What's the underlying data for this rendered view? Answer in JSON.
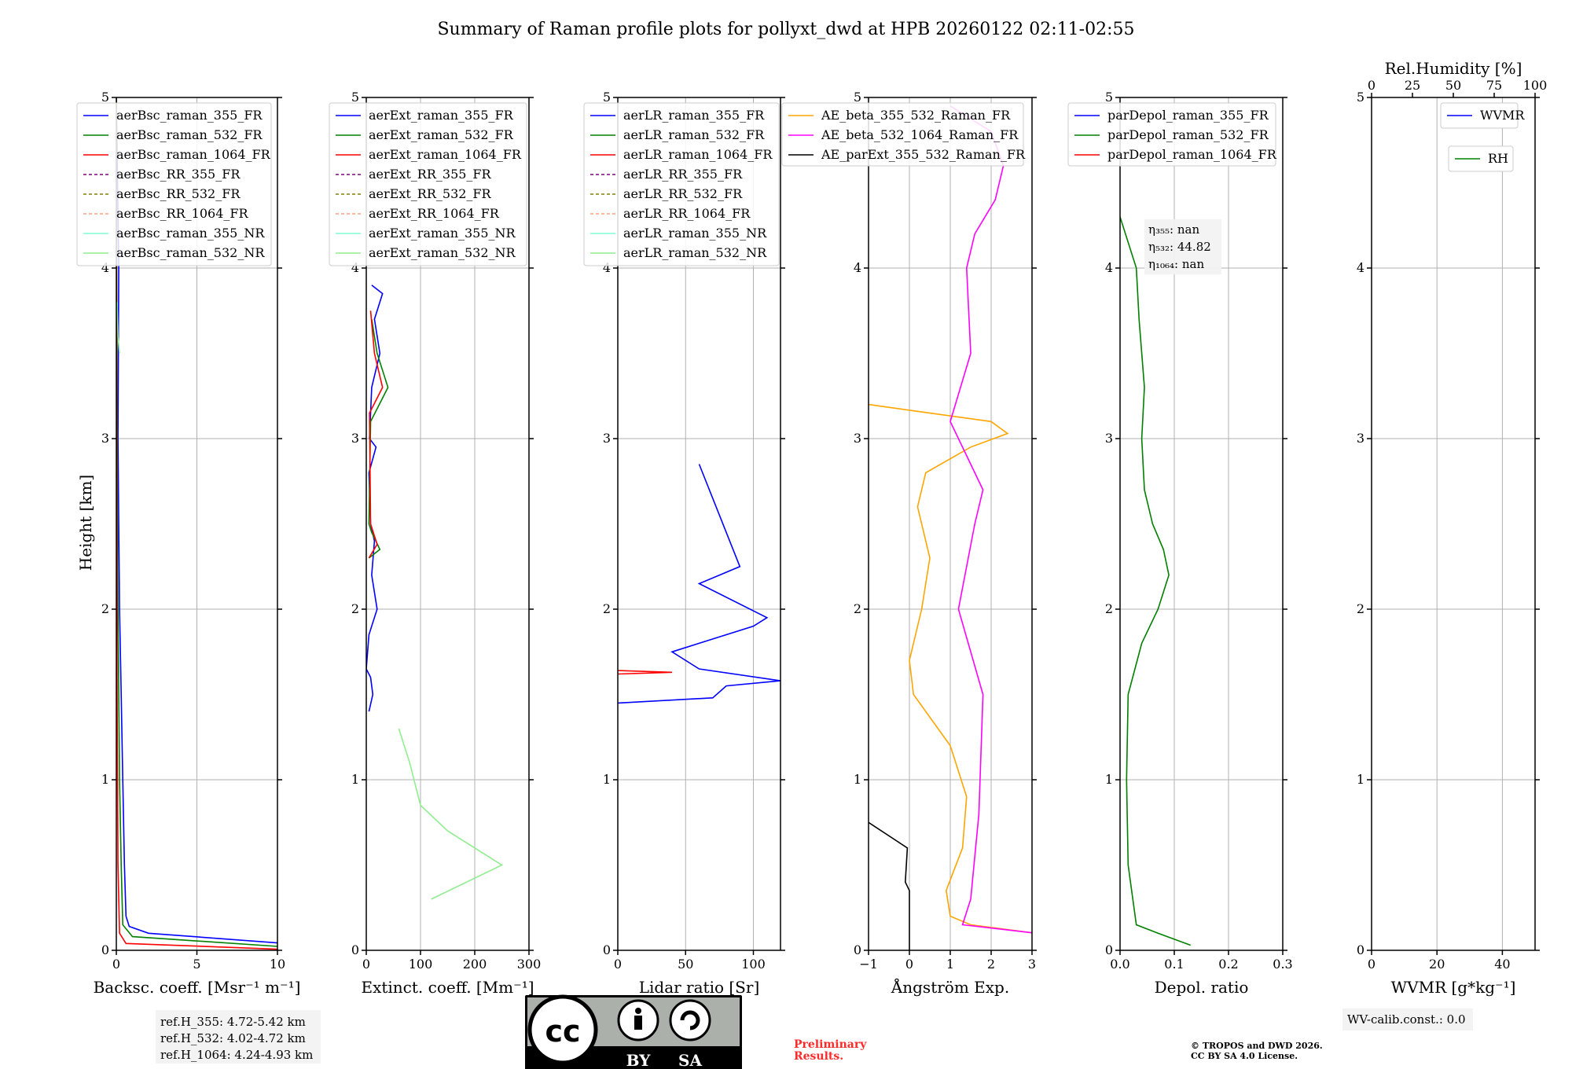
{
  "title": "Summary of Raman profile plots for pollyxt_dwd at HPB 20260122 02:11-02:55",
  "ylabel": "Height [km]",
  "y_ticks": [
    "0",
    "1",
    "2",
    "3",
    "4",
    "5"
  ],
  "chart_data": [
    {
      "type": "line",
      "name": "backscatter",
      "xlabel": "Backsc. coeff. [Msr⁻¹ m⁻¹]",
      "xlim": [
        0,
        10
      ],
      "ylim": [
        0,
        5
      ],
      "x_ticks": [
        "0",
        "5",
        "10"
      ],
      "legend": [
        "aerBsc_raman_355_FR",
        "aerBsc_raman_532_FR",
        "aerBsc_raman_1064_FR",
        "aerBsc_RR_355_FR",
        "aerBsc_RR_532_FR",
        "aerBsc_RR_1064_FR",
        "aerBsc_raman_355_NR",
        "aerBsc_raman_532_NR"
      ],
      "series": [
        {
          "name": "aerBsc_raman_355_FR",
          "color": "#0000ff",
          "points": [
            [
              10.5,
              0.04
            ],
            [
              2,
              0.1
            ],
            [
              0.8,
              0.14
            ],
            [
              0.6,
              0.2
            ],
            [
              0.5,
              0.5
            ],
            [
              0.4,
              1.0
            ],
            [
              0.3,
              1.5
            ],
            [
              0.2,
              2.0
            ],
            [
              0.1,
              3.0
            ],
            [
              0.15,
              4.0
            ],
            [
              0,
              5
            ]
          ]
        },
        {
          "name": "aerBsc_raman_532_FR",
          "color": "#008000",
          "points": [
            [
              10.5,
              0.02
            ],
            [
              1,
              0.08
            ],
            [
              0.4,
              0.15
            ],
            [
              0.3,
              0.5
            ],
            [
              0.2,
              1.0
            ],
            [
              0.1,
              2.0
            ],
            [
              0.05,
              3.0
            ],
            [
              0,
              5
            ]
          ]
        },
        {
          "name": "aerBsc_raman_1064_FR",
          "color": "#ff0000",
          "points": [
            [
              10.5,
              0.005
            ],
            [
              0.6,
              0.04
            ],
            [
              0.2,
              0.1
            ],
            [
              0.1,
              0.5
            ],
            [
              0.05,
              1.5
            ],
            [
              0.02,
              3
            ],
            [
              0,
              5
            ]
          ]
        },
        {
          "name": "aerBsc_raman_532_NR",
          "color": "#90ee90",
          "points": [
            [
              0.2,
              3.5
            ],
            [
              0.1,
              3.6
            ],
            [
              0.05,
              3.8
            ]
          ]
        }
      ],
      "annotation": [
        "ref.H_355: 4.72-5.42 km",
        "ref.H_532: 4.02-4.72 km",
        "ref.H_1064: 4.24-4.93 km"
      ]
    },
    {
      "type": "line",
      "name": "extinction",
      "xlabel": "Extinct. coeff. [Mm⁻¹]",
      "xlim": [
        0,
        300
      ],
      "ylim": [
        0,
        5
      ],
      "x_ticks": [
        "0",
        "100",
        "200",
        "300"
      ],
      "legend": [
        "aerExt_raman_355_FR",
        "aerExt_raman_532_FR",
        "aerExt_raman_1064_FR",
        "aerExt_RR_355_FR",
        "aerExt_RR_532_FR",
        "aerExt_RR_1064_FR",
        "aerExt_raman_355_NR",
        "aerExt_raman_532_NR"
      ],
      "series": [
        {
          "name": "aerExt_raman_355_FR",
          "color": "#0000ff",
          "points": [
            [
              5,
              1.4
            ],
            [
              12,
              1.5
            ],
            [
              8,
              1.6
            ],
            [
              0,
              1.65
            ],
            [
              5,
              1.85
            ],
            [
              20,
              2.0
            ],
            [
              10,
              2.2
            ],
            [
              15,
              2.4
            ],
            [
              8,
              2.5
            ],
            [
              5,
              2.8
            ],
            [
              18,
              2.95
            ],
            [
              6,
              3.0
            ],
            [
              10,
              3.3
            ],
            [
              25,
              3.5
            ],
            [
              15,
              3.7
            ],
            [
              30,
              3.85
            ],
            [
              10,
              3.9
            ]
          ]
        },
        {
          "name": "aerExt_raman_532_FR",
          "color": "#008000",
          "points": [
            [
              5,
              2.3
            ],
            [
              25,
              2.35
            ],
            [
              10,
              2.45
            ],
            [
              5,
              2.5
            ],
            [
              8,
              3.1
            ],
            [
              40,
              3.3
            ],
            [
              20,
              3.5
            ],
            [
              10,
              3.7
            ]
          ]
        },
        {
          "name": "aerExt_raman_1064_FR",
          "color": "#ff0000",
          "points": [
            [
              5,
              2.3
            ],
            [
              20,
              2.38
            ],
            [
              8,
              2.5
            ],
            [
              6,
              3.15
            ],
            [
              30,
              3.3
            ],
            [
              15,
              3.5
            ],
            [
              8,
              3.75
            ]
          ]
        },
        {
          "name": "aerExt_raman_532_NR",
          "color": "#90ee90",
          "points": [
            [
              120,
              0.3
            ],
            [
              250,
              0.5
            ],
            [
              150,
              0.7
            ],
            [
              100,
              0.85
            ],
            [
              80,
              1.1
            ],
            [
              60,
              1.3
            ]
          ]
        }
      ]
    },
    {
      "type": "line",
      "name": "lidar_ratio",
      "xlabel": "Lidar ratio [Sr]",
      "xlim": [
        0,
        120
      ],
      "ylim": [
        0,
        5
      ],
      "x_ticks": [
        "0",
        "50",
        "100"
      ],
      "legend": [
        "aerLR_raman_355_FR",
        "aerLR_raman_532_FR",
        "aerLR_raman_1064_FR",
        "aerLR_RR_355_FR",
        "aerLR_RR_532_FR",
        "aerLR_RR_1064_FR",
        "aerLR_raman_355_NR",
        "aerLR_raman_532_NR"
      ],
      "series": [
        {
          "name": "aerLR_raman_355_FR",
          "color": "#0000ff",
          "points": [
            [
              0,
              1.45
            ],
            [
              70,
              1.48
            ],
            [
              80,
              1.55
            ],
            [
              120,
              1.58
            ],
            [
              60,
              1.65
            ],
            [
              40,
              1.75
            ],
            [
              60,
              1.8
            ],
            [
              100,
              1.9
            ],
            [
              110,
              1.95
            ],
            [
              60,
              2.15
            ],
            [
              90,
              2.25
            ],
            [
              60,
              2.85
            ]
          ]
        },
        {
          "name": "aerLR_raman_1064_FR",
          "color": "#ff0000",
          "points": [
            [
              0,
              1.62
            ],
            [
              40,
              1.63
            ],
            [
              0,
              1.64
            ]
          ]
        }
      ]
    },
    {
      "type": "line",
      "name": "angstrom",
      "xlabel": "Ångström Exp.",
      "xlim": [
        -1,
        3
      ],
      "ylim": [
        0,
        5
      ],
      "x_ticks": [
        "−1",
        "0",
        "1",
        "2",
        "3"
      ],
      "legend": [
        "AE_beta_355_532_Raman_FR",
        "AE_beta_532_1064_Raman_FR",
        "AE_parExt_355_532_Raman_FR"
      ],
      "series": [
        {
          "name": "AE_beta_355_532_Raman_FR",
          "color": "#ffa500",
          "points": [
            [
              3.1,
              0.1
            ],
            [
              1.5,
              0.15
            ],
            [
              1.0,
              0.2
            ],
            [
              0.9,
              0.35
            ],
            [
              1.3,
              0.6
            ],
            [
              1.4,
              0.9
            ],
            [
              1.0,
              1.2
            ],
            [
              0.1,
              1.5
            ],
            [
              0.0,
              1.7
            ],
            [
              0.3,
              2.0
            ],
            [
              0.5,
              2.3
            ],
            [
              0.2,
              2.6
            ],
            [
              0.4,
              2.8
            ],
            [
              1.5,
              2.95
            ],
            [
              2.4,
              3.03
            ],
            [
              2.0,
              3.1
            ],
            [
              -1,
              3.2
            ]
          ]
        },
        {
          "name": "AE_beta_532_1064_Raman_FR",
          "color": "#ff00ff",
          "points": [
            [
              3.1,
              0.1
            ],
            [
              1.3,
              0.15
            ],
            [
              1.5,
              0.3
            ],
            [
              1.7,
              0.8
            ],
            [
              1.8,
              1.5
            ],
            [
              1.2,
              2.0
            ],
            [
              1.6,
              2.5
            ],
            [
              1.8,
              2.7
            ],
            [
              1.0,
              3.1
            ],
            [
              1.5,
              3.5
            ],
            [
              1.4,
              4.0
            ],
            [
              1.6,
              4.2
            ],
            [
              2.1,
              4.4
            ],
            [
              2.3,
              4.6
            ],
            [
              2.0,
              4.8
            ],
            [
              1.0,
              4.95
            ]
          ]
        },
        {
          "name": "AE_parExt_355_532_Raman_FR",
          "color": "#000000",
          "points": [
            [
              0,
              0
            ],
            [
              0,
              0.35
            ],
            [
              -0.1,
              0.4
            ],
            [
              -0.05,
              0.6
            ],
            [
              -1,
              0.75
            ]
          ]
        }
      ]
    },
    {
      "type": "line",
      "name": "depolarization",
      "xlabel": "Depol. ratio",
      "xlim": [
        0,
        0.3
      ],
      "ylim": [
        0,
        5
      ],
      "x_ticks": [
        "0.0",
        "0.1",
        "0.2",
        "0.3"
      ],
      "legend": [
        "parDepol_raman_355_FR",
        "parDepol_raman_532_FR",
        "parDepol_raman_1064_FR"
      ],
      "series": [
        {
          "name": "parDepol_raman_532_FR",
          "color": "#008000",
          "points": [
            [
              0.13,
              0.03
            ],
            [
              0.07,
              0.1
            ],
            [
              0.03,
              0.15
            ],
            [
              0.015,
              0.5
            ],
            [
              0.012,
              1.0
            ],
            [
              0.015,
              1.5
            ],
            [
              0.04,
              1.8
            ],
            [
              0.07,
              2.0
            ],
            [
              0.09,
              2.2
            ],
            [
              0.08,
              2.35
            ],
            [
              0.06,
              2.5
            ],
            [
              0.045,
              2.7
            ],
            [
              0.04,
              3.0
            ],
            [
              0.045,
              3.3
            ],
            [
              0.035,
              3.7
            ],
            [
              0.03,
              4.0
            ],
            [
              0.0,
              4.3
            ]
          ]
        }
      ],
      "annotation": [
        "η₃₅₅: nan",
        "η₅₃₂: 44.82",
        "η₁₀₆₄: nan"
      ]
    },
    {
      "type": "line",
      "name": "water_vapor",
      "xlabel": "WVMR [g*kg⁻¹]",
      "xlim": [
        0,
        50
      ],
      "ylim": [
        0,
        5
      ],
      "x_ticks": [
        "0",
        "20",
        "40"
      ],
      "top_xlabel": "Rel.Humidity [%]",
      "top_x_ticks": [
        "0",
        "25",
        "50",
        "75",
        "100"
      ],
      "legend": [
        "WVMR",
        "RH"
      ],
      "series": [],
      "annotation": [
        "WV-calib.const.: 0.0"
      ]
    }
  ],
  "footer": {
    "license_badge": [
      "BY",
      "SA"
    ],
    "preliminary": [
      "Preliminary",
      "Results."
    ],
    "copyright": [
      "© TROPOS and DWD 2026.",
      "CC BY SA 4.0 License."
    ]
  }
}
